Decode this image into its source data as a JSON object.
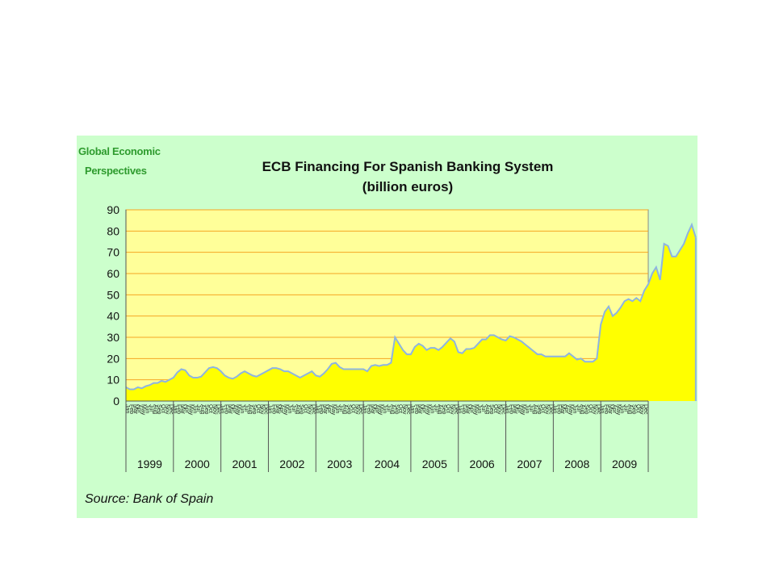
{
  "brand": {
    "line1": "Global Economic",
    "line2": "Perspectives"
  },
  "source": "Source: Bank of Spain",
  "colors": {
    "panel": "#ccffcc",
    "plot": "#ffff99",
    "area": "#ffff00",
    "line": "#8db4e2",
    "grid": "#f5a623"
  },
  "chart_data": {
    "type": "area",
    "title": "ECB Financing For Spanish Banking System",
    "subtitle": "(billion euros)",
    "ylim": [
      0,
      90
    ],
    "yticks": [
      0,
      10,
      20,
      30,
      40,
      50,
      60,
      70,
      80,
      90
    ],
    "grid": true,
    "x_unit": "month",
    "x_start": "1999-01",
    "years": [
      "1999",
      "2000",
      "2001",
      "2002",
      "2003",
      "2004",
      "2005",
      "2006",
      "2007",
      "2008",
      "2009"
    ],
    "month_abbrevs": [
      "Jan",
      "Feb",
      "Mar",
      "Apr",
      "May",
      "Jun",
      "Jul",
      "Aug",
      "Sep",
      "Oct",
      "Nov",
      "Dec"
    ],
    "series": [
      {
        "values": [
          6.5,
          5.5,
          5.5,
          6.5,
          6,
          7,
          7.5,
          8.5,
          8.5,
          9.5,
          9,
          10,
          11,
          13.5,
          15,
          14.5,
          12,
          11,
          11,
          11.5,
          13.5,
          15.5,
          16,
          15.5,
          14,
          12,
          11,
          10.5,
          11.5,
          13,
          14,
          13,
          12,
          11.5,
          12.5,
          13.5,
          14.5,
          15.5,
          15.5,
          15,
          14,
          14,
          13,
          12,
          11,
          12,
          13,
          14,
          12,
          11.5,
          13,
          15,
          17.5,
          18,
          16,
          15,
          15,
          15,
          15,
          15,
          15,
          14,
          16.5,
          17,
          16.5,
          17,
          17,
          18,
          30,
          27,
          24,
          22,
          22,
          25.5,
          27,
          26,
          24,
          25,
          25,
          24,
          25.5,
          27.5,
          29.5,
          28,
          23,
          22.5,
          24.5,
          24.5,
          25,
          27,
          29,
          29,
          31,
          31,
          30,
          29,
          28.5,
          30.5,
          30,
          29,
          28,
          26.5,
          25,
          23.5,
          22,
          22,
          21,
          21,
          21,
          21,
          21,
          21,
          22.5,
          21,
          19.5,
          20,
          18.5,
          18.5,
          18.5,
          20,
          36,
          42,
          44.5,
          40,
          41.5,
          44,
          47,
          48,
          47,
          48.5,
          47,
          52,
          55,
          60,
          63,
          57,
          74,
          73,
          68,
          68,
          71,
          74,
          79,
          83,
          77
        ]
      }
    ]
  }
}
